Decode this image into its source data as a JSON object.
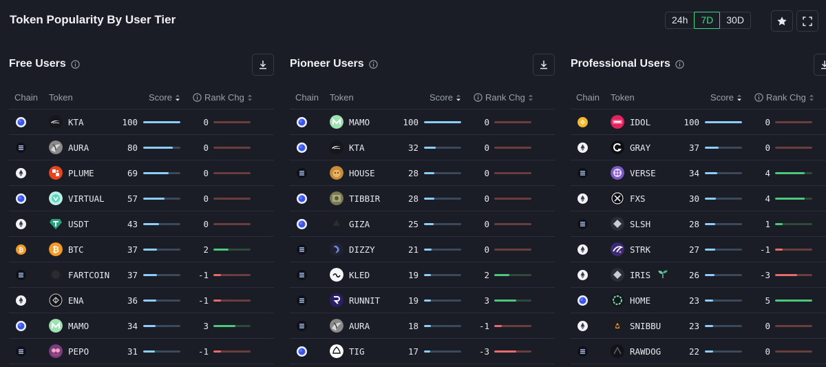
{
  "title": "Token Popularity By User Tier",
  "timeframes": [
    "24h",
    "7D",
    "30D"
  ],
  "active_timeframe": "7D",
  "columns": {
    "chain": "Chain",
    "token": "Token",
    "score": "Score",
    "rank": "Rank Chg"
  },
  "panels": [
    {
      "title": "Free Users",
      "rows": [
        {
          "chain": "base",
          "token": "KTA",
          "logo": "kta",
          "score": 100,
          "rank": 0
        },
        {
          "chain": "solana",
          "token": "AURA",
          "logo": "aura",
          "score": 80,
          "rank": 0
        },
        {
          "chain": "ethereum",
          "token": "PLUME",
          "logo": "plume",
          "score": 69,
          "rank": 0
        },
        {
          "chain": "base",
          "token": "VIRTUAL",
          "logo": "virtual",
          "score": 57,
          "rank": 0
        },
        {
          "chain": "ethereum",
          "token": "USDT",
          "logo": "usdt",
          "score": 43,
          "rank": 0
        },
        {
          "chain": "bitcoin",
          "token": "BTC",
          "logo": "btc",
          "score": 37,
          "rank": 2
        },
        {
          "chain": "solana",
          "token": "FARTCOIN",
          "logo": "fartcoin",
          "score": 37,
          "rank": -1
        },
        {
          "chain": "ethereum",
          "token": "ENA",
          "logo": "ena",
          "score": 36,
          "rank": -1
        },
        {
          "chain": "base",
          "token": "MAMO",
          "logo": "mamo",
          "score": 34,
          "rank": 3
        },
        {
          "chain": "solana",
          "token": "PEPO",
          "logo": "pepo",
          "score": 31,
          "rank": -1
        }
      ]
    },
    {
      "title": "Pioneer Users",
      "rows": [
        {
          "chain": "base",
          "token": "MAMO",
          "logo": "mamo",
          "score": 100,
          "rank": 0
        },
        {
          "chain": "base",
          "token": "KTA",
          "logo": "kta",
          "score": 32,
          "rank": 0
        },
        {
          "chain": "solana",
          "token": "HOUSE",
          "logo": "house",
          "score": 28,
          "rank": 0
        },
        {
          "chain": "base",
          "token": "TIBBIR",
          "logo": "tibbir",
          "score": 28,
          "rank": 0
        },
        {
          "chain": "base",
          "token": "GIZA",
          "logo": "giza",
          "score": 25,
          "rank": 0
        },
        {
          "chain": "solana",
          "token": "DIZZY",
          "logo": "dizzy",
          "score": 21,
          "rank": 0
        },
        {
          "chain": "solana",
          "token": "KLED",
          "logo": "kled",
          "score": 19,
          "rank": 2
        },
        {
          "chain": "solana",
          "token": "RUNNIT",
          "logo": "runnit",
          "score": 19,
          "rank": 3
        },
        {
          "chain": "solana",
          "token": "AURA",
          "logo": "aura",
          "score": 18,
          "rank": -1
        },
        {
          "chain": "base",
          "token": "TIG",
          "logo": "tig",
          "score": 17,
          "rank": -3
        }
      ]
    },
    {
      "title": "Professional Users",
      "rows": [
        {
          "chain": "bnb",
          "token": "IDOL",
          "logo": "idol",
          "score": 100,
          "rank": 0
        },
        {
          "chain": "ethereum",
          "token": "GRAY",
          "logo": "gray",
          "score": 37,
          "rank": 0
        },
        {
          "chain": "solana",
          "token": "VERSE",
          "logo": "verse",
          "score": 34,
          "rank": 4
        },
        {
          "chain": "ethereum",
          "token": "FXS",
          "logo": "fxs",
          "score": 30,
          "rank": 4
        },
        {
          "chain": "solana",
          "token": "SLSH",
          "logo": "slsh",
          "score": 28,
          "rank": 1
        },
        {
          "chain": "ethereum",
          "token": "STRK",
          "logo": "strk",
          "score": 27,
          "rank": -1
        },
        {
          "chain": "ethereum",
          "token": "IRIS",
          "logo": "iris",
          "score": 26,
          "rank": -3,
          "badge": "sprout-icon"
        },
        {
          "chain": "base",
          "token": "HOME",
          "logo": "home",
          "score": 23,
          "rank": 5
        },
        {
          "chain": "ethereum",
          "token": "SNIBBU",
          "logo": "snibbu",
          "score": 23,
          "rank": 0
        },
        {
          "chain": "solana",
          "token": "RAWDOG",
          "logo": "rawdog",
          "score": 22,
          "rank": 0
        }
      ]
    }
  ],
  "colors": {
    "background": "#1a1d26",
    "accent_active": "#3ddc84",
    "score_bar": "#8ccfff",
    "rank_positive": "#4cc97a",
    "rank_negative": "#e86a6a",
    "rank_neutral_track": "#6b3e3e"
  }
}
